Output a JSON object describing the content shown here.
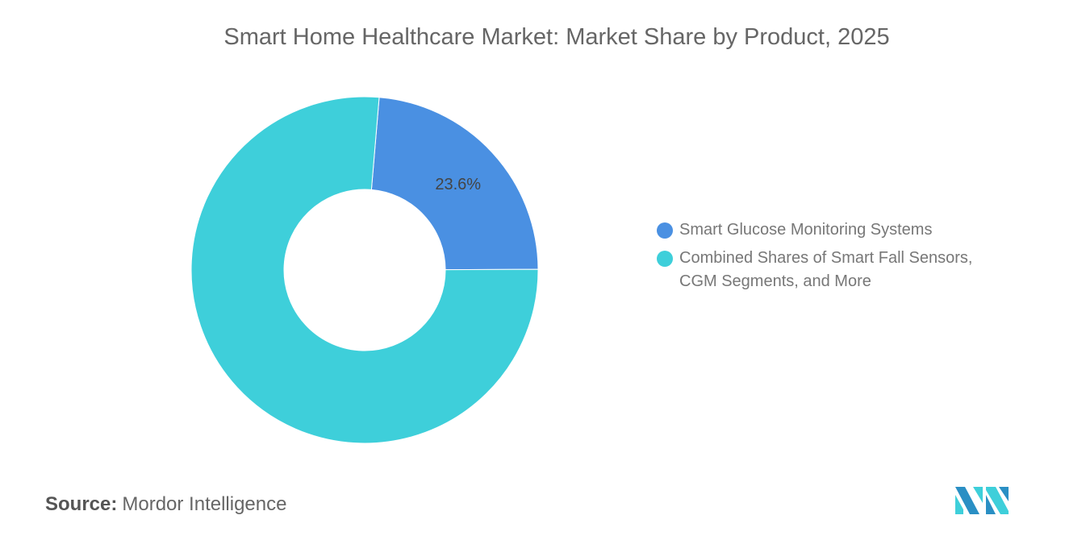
{
  "chart_data": {
    "type": "pie",
    "title": "Smart Home Healthcare Market: Market Share by Product, 2025",
    "donut": true,
    "slices": [
      {
        "name": "Smart Glucose Monitoring Systems",
        "value": 23.6,
        "label": "23.6%",
        "color": "#4a90e2"
      },
      {
        "name": "Combined Shares of Smart Fall Sensors, CGM Segments, and More",
        "value": 76.4,
        "label": "",
        "color": "#3ecfda"
      }
    ],
    "legend_position": "right"
  },
  "legend": {
    "items": [
      {
        "line1": "Smart Glucose Monitoring Systems",
        "line2": ""
      },
      {
        "line1": "Combined Shares of Smart Fall Sensors,",
        "line2": "CGM Segments, and More"
      }
    ]
  },
  "source": {
    "label": "Source:",
    "value": "Mordor Intelligence"
  },
  "logo": {
    "text": "Mordor Intelligence"
  }
}
